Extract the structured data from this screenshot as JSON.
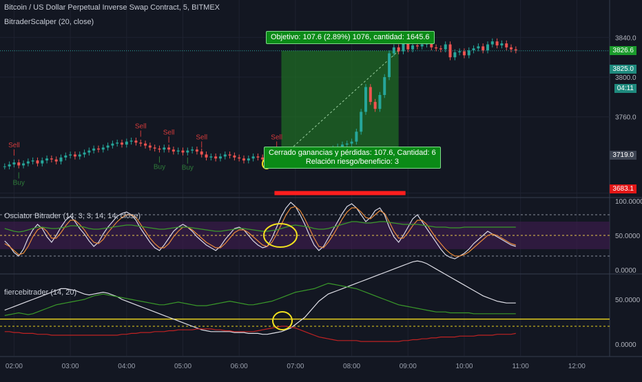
{
  "header": {
    "symbol": "Bitcoin / US Dollar Perpetual Inverse Swap Contract, 5, BITMEX",
    "indicator": "BitraderScalper (20, close)",
    "osc_title": "Osciator Bitrader (14, 3, 3, 14, 14, close)",
    "fierce_title": "fiercebitrader (14, 20)"
  },
  "colors": {
    "background": "#131722",
    "up": "#26a69a",
    "down": "#ef5350",
    "sell": "#d33b3b",
    "buy": "#2f7d3a",
    "target_zone": "#1f6b24",
    "stop_zone": "#ff1e1e",
    "highlight": "#f2e21f",
    "osc_band": "#3a1d4a"
  },
  "price_badges": {
    "last": "3826.6",
    "current": "3825.0",
    "timer": "04:11",
    "mid": "3719.0",
    "stop": "3683.1"
  },
  "tooltips": {
    "target": "Objetivo: 107.6 (2.89%) 1076, cantidad: 1645.6",
    "closed_line1": "Cerrado ganancias y pérdidas: 107.6, Cantidad: 6",
    "closed_line2": "Relación riesgo/beneficio: 3"
  },
  "chart_data": [
    {
      "type": "candlestick",
      "name": "price",
      "yticks": [
        "3840.0",
        "3800.0",
        "3760.0",
        "3683.1"
      ],
      "ylim": [
        3680,
        3850
      ],
      "xticks": [
        "02:00",
        "03:00",
        "04:00",
        "05:00",
        "06:00",
        "07:00",
        "08:00",
        "09:00",
        "10:00",
        "11:00",
        "12:00"
      ],
      "xlim": [
        "01:45",
        "12:35"
      ],
      "close": [
        3710,
        3712,
        3714,
        3711,
        3713,
        3715,
        3716,
        3713,
        3716,
        3718,
        3717,
        3715,
        3719,
        3721,
        3722,
        3720,
        3722,
        3724,
        3726,
        3728,
        3727,
        3729,
        3731,
        3733,
        3734,
        3732,
        3735,
        3736,
        3734,
        3733,
        3731,
        3729,
        3728,
        3727,
        3729,
        3727,
        3725,
        3726,
        3724,
        3726,
        3727,
        3725,
        3722,
        3719,
        3720,
        3718,
        3720,
        3722,
        3721,
        3719,
        3718,
        3716,
        3718,
        3720,
        3719,
        3717,
        3718,
        3720,
        3722,
        3721,
        3720,
        3722,
        3724,
        3722,
        3721,
        3720,
        3723,
        3725,
        3724,
        3726,
        3728,
        3730,
        3732,
        3733,
        3735,
        3745,
        3765,
        3790,
        3775,
        3768,
        3782,
        3800,
        3824,
        3830,
        3826,
        3835,
        3828,
        3832,
        3831,
        3833,
        3835,
        3830,
        3829,
        3828,
        3833,
        3820,
        3825,
        3826,
        3822,
        3827,
        3829,
        3831,
        3827,
        3833,
        3836,
        3832,
        3834,
        3830,
        3828,
        3827
      ],
      "signals": [
        {
          "label": "Sell",
          "at": "02:00"
        },
        {
          "label": "Sell",
          "at": "04:15"
        },
        {
          "label": "Sell",
          "at": "04:45"
        },
        {
          "label": "Sell",
          "at": "05:20"
        },
        {
          "label": "Sell",
          "at": "06:40"
        },
        {
          "label": "Buy",
          "at": "02:05"
        },
        {
          "label": "Buy",
          "at": "04:35"
        },
        {
          "label": "Buy",
          "at": "05:05"
        }
      ],
      "trade": {
        "entry": 3719.0,
        "target": 3826.6,
        "stop": 3683.1,
        "start": "06:45",
        "end": "08:50"
      }
    },
    {
      "type": "line",
      "name": "Osciator Bitrader",
      "ylim": [
        0,
        100
      ],
      "yticks": [
        "100.0000",
        "50.0000",
        "0.0000"
      ],
      "levels": [
        80,
        50,
        20
      ],
      "series": [
        {
          "color": "#d8d8e6",
          "values": [
            42,
            35,
            25,
            20,
            30,
            46,
            58,
            66,
            60,
            48,
            40,
            50,
            62,
            72,
            78,
            70,
            60,
            52,
            42,
            34,
            40,
            52,
            62,
            70,
            78,
            82,
            84,
            80,
            72,
            60,
            50,
            40,
            32,
            28,
            36,
            46,
            56,
            62,
            66,
            62,
            56,
            48,
            42,
            36,
            32,
            28,
            34,
            44,
            52,
            60,
            62,
            58,
            50,
            42,
            36,
            32,
            34,
            46,
            62,
            78,
            90,
            98,
            92,
            80,
            66,
            50,
            36,
            28,
            34,
            46,
            58,
            70,
            82,
            92,
            96,
            90,
            80,
            70,
            76,
            86,
            90,
            80,
            62,
            48,
            40,
            50,
            62,
            74,
            80,
            70,
            60,
            50,
            40,
            30,
            22,
            18,
            16,
            20,
            24,
            30,
            38,
            44,
            50,
            56,
            52,
            48,
            44,
            40,
            36,
            34
          ]
        },
        {
          "color": "#e88a3a",
          "values": [
            38,
            34,
            28,
            22,
            24,
            34,
            48,
            58,
            62,
            56,
            46,
            46,
            54,
            64,
            72,
            72,
            66,
            58,
            48,
            40,
            38,
            44,
            54,
            62,
            70,
            76,
            80,
            80,
            76,
            66,
            56,
            46,
            38,
            32,
            32,
            38,
            48,
            56,
            62,
            62,
            58,
            52,
            46,
            40,
            36,
            32,
            32,
            38,
            46,
            54,
            58,
            58,
            54,
            48,
            42,
            36,
            34,
            40,
            52,
            66,
            80,
            90,
            92,
            86,
            74,
            60,
            46,
            34,
            32,
            40,
            50,
            62,
            74,
            84,
            90,
            90,
            84,
            76,
            74,
            80,
            86,
            82,
            70,
            56,
            46,
            46,
            54,
            64,
            72,
            72,
            66,
            56,
            46,
            38,
            30,
            24,
            20,
            20,
            22,
            26,
            32,
            38,
            44,
            50,
            52,
            50,
            46,
            42,
            38,
            36
          ]
        },
        {
          "color": "#3a9a2a",
          "values": [
            60,
            58,
            56,
            55,
            56,
            58,
            60,
            62,
            62,
            61,
            60,
            60,
            61,
            62,
            64,
            64,
            63,
            62,
            60,
            59,
            59,
            60,
            61,
            62,
            63,
            64,
            65,
            65,
            64,
            63,
            62,
            61,
            60,
            59,
            59,
            60,
            61,
            62,
            62,
            62,
            61,
            60,
            59,
            58,
            57,
            56,
            56,
            57,
            58,
            59,
            60,
            60,
            59,
            58,
            57,
            56,
            56,
            57,
            58,
            60,
            62,
            64,
            65,
            64,
            63,
            62,
            60,
            59,
            59,
            60,
            62,
            64,
            66,
            68,
            70,
            70,
            69,
            68,
            68,
            69,
            70,
            70,
            69,
            68,
            67,
            66,
            66,
            66,
            66,
            65,
            64,
            63,
            62,
            62,
            62,
            61,
            61,
            61,
            62,
            62,
            62,
            62,
            62,
            62,
            62,
            62,
            62,
            62,
            62,
            62
          ]
        }
      ]
    },
    {
      "type": "line",
      "name": "fiercebitrader",
      "ylim": [
        0,
        100
      ],
      "yticks": [
        "50.0000",
        "0.0000"
      ],
      "levels": [
        28,
        20
      ],
      "series": [
        {
          "color": "#e0e0e8",
          "values": [
            38,
            40,
            42,
            44,
            46,
            48,
            50,
            52,
            54,
            56,
            58,
            60,
            62,
            62,
            61,
            60,
            58,
            56,
            55,
            56,
            57,
            58,
            57,
            55,
            53,
            50,
            48,
            46,
            44,
            42,
            40,
            38,
            36,
            34,
            32,
            30,
            28,
            26,
            24,
            22,
            20,
            18,
            16,
            15,
            14,
            14,
            14,
            14,
            14,
            13,
            13,
            13,
            12,
            12,
            12,
            11,
            11,
            12,
            13,
            14,
            16,
            18,
            22,
            26,
            30,
            36,
            42,
            48,
            52,
            56,
            58,
            60,
            62,
            64,
            66,
            68,
            70,
            72,
            74,
            76,
            78,
            80,
            82,
            84,
            86,
            88,
            90,
            92,
            93,
            92,
            90,
            87,
            84,
            81,
            78,
            75,
            72,
            69,
            66,
            63,
            60,
            57,
            54,
            52,
            50,
            48,
            47,
            46,
            46,
            46
          ]
        },
        {
          "color": "#3a9a2a",
          "values": [
            32,
            33,
            34,
            35,
            34,
            33,
            34,
            36,
            38,
            40,
            42,
            44,
            45,
            46,
            47,
            48,
            49,
            50,
            52,
            54,
            55,
            56,
            55,
            54,
            53,
            52,
            51,
            50,
            49,
            48,
            47,
            46,
            45,
            44,
            44,
            45,
            46,
            47,
            46,
            45,
            44,
            43,
            43,
            43,
            44,
            45,
            46,
            47,
            48,
            47,
            46,
            45,
            44,
            44,
            45,
            46,
            47,
            48,
            50,
            52,
            54,
            56,
            58,
            59,
            60,
            61,
            62,
            64,
            66,
            68,
            67,
            66,
            65,
            64,
            63,
            62,
            60,
            58,
            56,
            54,
            52,
            50,
            48,
            46,
            44,
            43,
            42,
            41,
            40,
            39,
            38,
            37,
            36,
            36,
            36,
            35,
            35,
            35,
            35,
            35,
            34,
            34,
            34,
            34,
            34,
            34,
            34,
            34,
            34,
            34
          ]
        },
        {
          "color": "#c02222",
          "values": [
            14,
            14,
            13,
            13,
            12,
            12,
            12,
            11,
            11,
            11,
            10,
            10,
            10,
            10,
            10,
            10,
            10,
            10,
            10,
            10,
            10,
            10,
            10,
            10,
            10,
            11,
            11,
            12,
            12,
            13,
            13,
            13,
            14,
            14,
            14,
            15,
            15,
            16,
            16,
            16,
            16,
            17,
            17,
            17,
            17,
            16,
            16,
            15,
            15,
            14,
            14,
            14,
            14,
            14,
            15,
            16,
            17,
            18,
            19,
            20,
            20,
            19,
            18,
            16,
            14,
            12,
            10,
            8,
            7,
            6,
            5,
            4,
            4,
            4,
            4,
            4,
            3,
            3,
            3,
            3,
            3,
            3,
            3,
            3,
            3,
            4,
            4,
            5,
            5,
            6,
            6,
            7,
            7,
            8,
            8,
            8,
            8,
            9,
            9,
            9,
            9,
            10,
            10,
            10,
            10,
            11,
            11,
            11,
            11,
            12
          ]
        }
      ]
    }
  ]
}
